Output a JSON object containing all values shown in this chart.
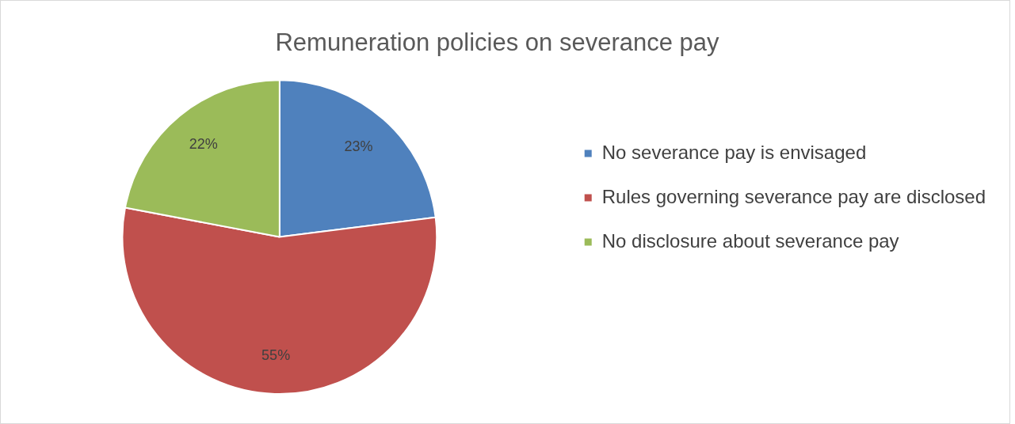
{
  "chart_data": {
    "type": "pie",
    "title": "Remuneration policies on severance pay",
    "categories": [
      "No severance pay is envisaged",
      "Rules governing severance pay are disclosed",
      "No disclosure about severance pay"
    ],
    "values": [
      23,
      55,
      22
    ],
    "colors": [
      "#4f81bd",
      "#c0504d",
      "#9bbb59"
    ],
    "value_labels": [
      "23%",
      "55%",
      "22%"
    ],
    "legend": "right"
  }
}
